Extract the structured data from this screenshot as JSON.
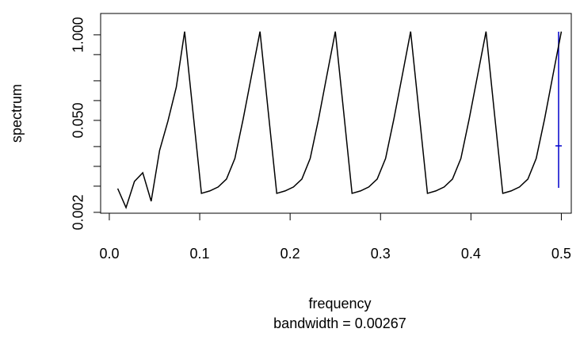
{
  "chart_data": {
    "type": "line",
    "xlabel": "frequency",
    "subtitle": "bandwidth = 0.00267",
    "ylabel": "spectrum",
    "log_y": true,
    "color": "#000000",
    "x": [
      0.0093,
      0.0185,
      0.0278,
      0.037,
      0.0463,
      0.0556,
      0.0648,
      0.0741,
      0.0833,
      0.0926,
      0.1019,
      0.1111,
      0.1204,
      0.1296,
      0.1389,
      0.1481,
      0.1574,
      0.1667,
      0.1759,
      0.1852,
      0.1944,
      0.2037,
      0.213,
      0.2222,
      0.2315,
      0.2407,
      0.25,
      0.2593,
      0.2685,
      0.2778,
      0.287,
      0.2963,
      0.3056,
      0.3148,
      0.3241,
      0.3333,
      0.3426,
      0.3519,
      0.3611,
      0.3704,
      0.3796,
      0.3889,
      0.3981,
      0.4074,
      0.4167,
      0.4259,
      0.4352,
      0.4444,
      0.4537,
      0.463,
      0.4722,
      0.4815,
      0.4907,
      0.5
    ],
    "values": [
      0.0046,
      0.00236,
      0.0059,
      0.008,
      0.00295,
      0.0174,
      0.0486,
      0.16,
      1.12,
      0.0659,
      0.00389,
      0.00423,
      0.00486,
      0.00641,
      0.0132,
      0.0528,
      0.243,
      1.12,
      0.0659,
      0.00389,
      0.00423,
      0.00486,
      0.00641,
      0.0132,
      0.0528,
      0.243,
      1.12,
      0.0659,
      0.00389,
      0.00423,
      0.00486,
      0.00641,
      0.0132,
      0.0528,
      0.243,
      1.12,
      0.0659,
      0.00389,
      0.00423,
      0.00486,
      0.00641,
      0.0132,
      0.0528,
      0.243,
      1.12,
      0.0659,
      0.00389,
      0.00423,
      0.00486,
      0.00641,
      0.0132,
      0.0528,
      0.243,
      1.12
    ],
    "xlim": [
      -0.0096,
      0.511
    ],
    "ylim": [
      0.00194,
      2.11
    ],
    "xticks": [
      {
        "value": 0,
        "label": "0.0"
      },
      0.1,
      0.2,
      0.3,
      0.4,
      0.5
    ],
    "yticks": [
      {
        "value": 0.002,
        "label": "0.002"
      },
      {
        "value": 0.05,
        "label": "0.050"
      },
      {
        "value": 1,
        "label": "1.000"
      }
    ],
    "yminor_ticks": [
      0.005,
      0.01,
      0.02,
      0.1,
      0.2,
      0.5
    ]
  }
}
